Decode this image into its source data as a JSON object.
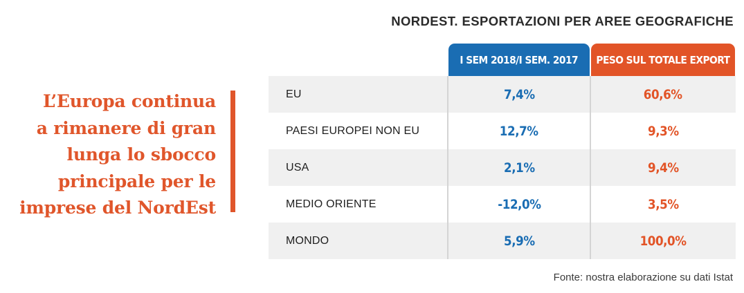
{
  "quote": {
    "lines": [
      "L’Europa continua",
      "a rimanere di gran",
      "lunga lo sbocco",
      "principale per le",
      "imprese del NordEst"
    ]
  },
  "colors": {
    "accent_orange": "#e25427",
    "accent_blue": "#1a6db3",
    "row_shade": "#f0f0f0"
  },
  "chart_data": {
    "type": "table",
    "title": "NORDEST. ESPORTAZIONI PER AREE GEOGRAFICHE",
    "columns": [
      "",
      "I SEM 2018/I SEM. 2017",
      "PESO SUL TOTALE EXPORT"
    ],
    "rows": [
      {
        "area": "EU",
        "variazione": "7,4%",
        "peso": "60,6%"
      },
      {
        "area": "PAESI EUROPEI NON EU",
        "variazione": "12,7%",
        "peso": "9,3%"
      },
      {
        "area": "USA",
        "variazione": "2,1%",
        "peso": "9,4%"
      },
      {
        "area": "MEDIO ORIENTE",
        "variazione": "-12,0%",
        "peso": "3,5%"
      },
      {
        "area": "MONDO",
        "variazione": "5,9%",
        "peso": "100,0%"
      }
    ],
    "source": "Fonte: nostra elaborazione su dati Istat"
  }
}
